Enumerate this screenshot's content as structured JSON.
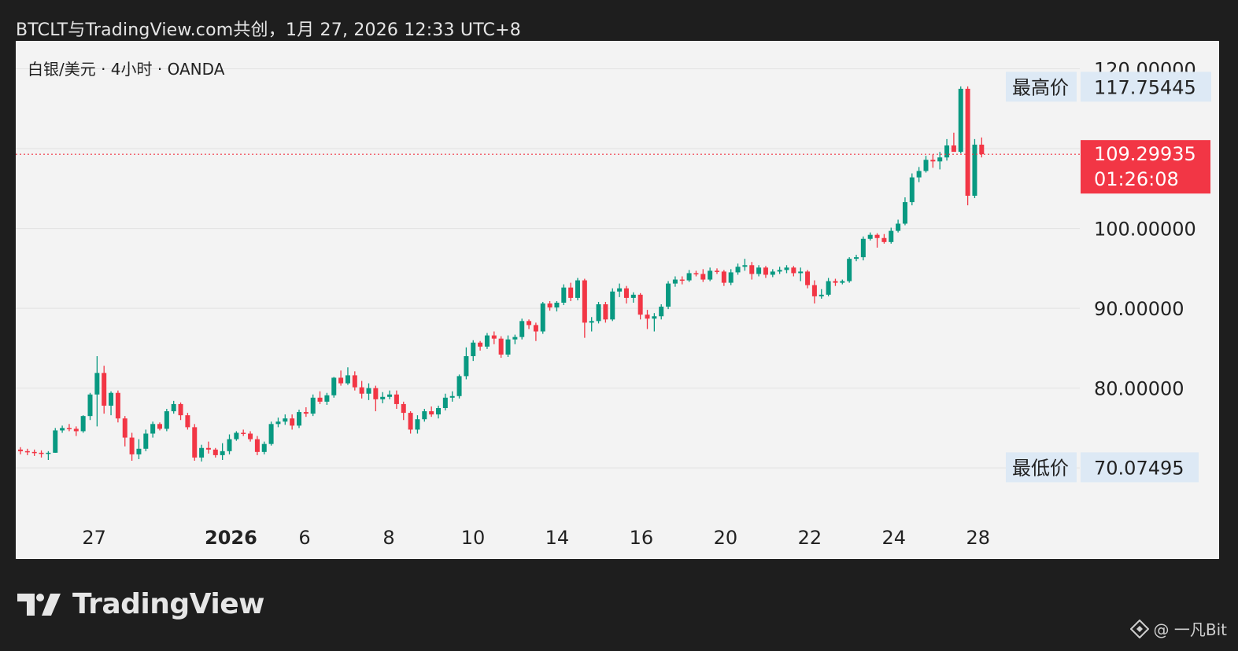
{
  "header": {
    "credit": "BTCLT与TradingView.com共创，1月 27, 2026 12:33 UTC+8"
  },
  "legend": {
    "symbol": "白银/美元 · 4小时 · OANDA"
  },
  "branding": {
    "logo_text": "TradingView",
    "watermark": "@ 一凡Bit"
  },
  "colors": {
    "up": "#089981",
    "down": "#f23645",
    "panel_bg": "#f3f3f3",
    "page_bg": "#1e1e1e",
    "grid": "#e2e2e2",
    "label_bg": "#dde9f5"
  },
  "chart_data": {
    "type": "candlestick",
    "symbol": "白银/美元",
    "interval": "4小时",
    "exchange": "OANDA",
    "ylim": [
      64.4,
      123.5
    ],
    "y_ticks": [
      "120.00000",
      "100.00000",
      "90.00000",
      "80.00000"
    ],
    "y_tick_values": [
      120,
      100,
      90,
      80
    ],
    "x_ticks": [
      {
        "label": "27",
        "index": 7,
        "bold": false
      },
      {
        "label": "2026",
        "index": 20,
        "bold": true
      },
      {
        "label": "6",
        "index": 27,
        "bold": false
      },
      {
        "label": "8",
        "index": 35,
        "bold": false
      },
      {
        "label": "10",
        "index": 43,
        "bold": false
      },
      {
        "label": "14",
        "index": 51,
        "bold": false
      },
      {
        "label": "16",
        "index": 59,
        "bold": false
      },
      {
        "label": "20",
        "index": 67,
        "bold": false
      },
      {
        "label": "22",
        "index": 75,
        "bold": false
      },
      {
        "label": "24",
        "index": 83,
        "bold": false
      },
      {
        "label": "28",
        "index": 91,
        "bold": false
      }
    ],
    "high_label": {
      "text": "最高价",
      "value": 117.75445,
      "value_text": "117.75445"
    },
    "low_label": {
      "text": "最低价",
      "value": 70.07495,
      "value_text": "70.07495"
    },
    "last_price": {
      "value": 109.29935,
      "value_text": "109.29935",
      "countdown": "01:26:08"
    },
    "candles": [
      [
        72.3,
        72.6,
        71.7,
        72.1
      ],
      [
        72.1,
        72.4,
        71.6,
        72.0
      ],
      [
        72.0,
        72.3,
        71.5,
        71.9
      ],
      [
        71.9,
        72.2,
        71.3,
        71.8
      ],
      [
        71.8,
        72.1,
        71.0,
        71.9
      ],
      [
        71.9,
        75.0,
        71.9,
        74.7
      ],
      [
        74.7,
        75.3,
        74.4,
        75.0
      ],
      [
        75.0,
        75.5,
        74.6,
        74.9
      ],
      [
        74.9,
        75.2,
        74.0,
        74.6
      ],
      [
        74.6,
        76.6,
        74.4,
        76.5
      ],
      [
        76.5,
        79.4,
        76.0,
        79.2
      ],
      [
        79.2,
        84.0,
        75.2,
        81.9
      ],
      [
        81.9,
        82.8,
        76.8,
        77.8
      ],
      [
        77.8,
        79.6,
        76.6,
        79.4
      ],
      [
        79.4,
        79.7,
        75.7,
        76.2
      ],
      [
        76.2,
        76.5,
        72.7,
        73.8
      ],
      [
        73.8,
        74.4,
        70.9,
        71.7
      ],
      [
        71.7,
        73.6,
        71.1,
        72.4
      ],
      [
        72.4,
        74.8,
        72.1,
        74.3
      ],
      [
        74.3,
        75.8,
        73.8,
        75.5
      ],
      [
        75.5,
        75.7,
        74.7,
        74.9
      ],
      [
        74.9,
        77.4,
        74.6,
        77.1
      ],
      [
        77.1,
        78.4,
        76.8,
        78.0
      ],
      [
        78.0,
        78.2,
        76.0,
        76.6
      ],
      [
        76.6,
        76.9,
        74.8,
        75.1
      ],
      [
        75.1,
        75.5,
        70.9,
        71.3
      ],
      [
        71.3,
        72.9,
        70.8,
        72.5
      ],
      [
        72.5,
        73.3,
        71.8,
        72.3
      ],
      [
        72.3,
        72.5,
        71.3,
        71.6
      ],
      [
        71.6,
        73.1,
        71.0,
        72.1
      ],
      [
        72.1,
        74.2,
        71.7,
        73.6
      ],
      [
        73.6,
        74.6,
        73.4,
        74.4
      ],
      [
        74.4,
        74.8,
        74.0,
        74.3
      ],
      [
        74.3,
        74.6,
        73.3,
        73.6
      ],
      [
        73.6,
        74.0,
        71.6,
        72.0
      ],
      [
        72.0,
        73.3,
        71.7,
        73.0
      ],
      [
        73.0,
        75.8,
        72.8,
        75.5
      ],
      [
        75.5,
        76.3,
        75.1,
        75.8
      ],
      [
        75.8,
        76.7,
        75.4,
        76.2
      ],
      [
        76.2,
        76.7,
        74.8,
        75.3
      ],
      [
        75.3,
        77.3,
        75.0,
        77.0
      ],
      [
        77.0,
        77.6,
        76.4,
        76.8
      ],
      [
        76.8,
        79.2,
        76.5,
        78.8
      ],
      [
        78.8,
        79.6,
        78.0,
        78.3
      ],
      [
        78.3,
        79.4,
        77.9,
        79.1
      ],
      [
        79.1,
        81.4,
        78.8,
        81.3
      ],
      [
        81.3,
        82.2,
        80.3,
        80.6
      ],
      [
        80.6,
        82.6,
        80.4,
        81.6
      ],
      [
        81.6,
        82.1,
        79.7,
        80.1
      ],
      [
        80.1,
        80.9,
        78.7,
        79.3
      ],
      [
        79.3,
        80.6,
        78.5,
        80.0
      ],
      [
        80.0,
        80.3,
        77.1,
        78.6
      ],
      [
        78.6,
        79.5,
        78.1,
        78.9
      ],
      [
        78.9,
        79.7,
        78.6,
        79.2
      ],
      [
        79.2,
        79.7,
        77.4,
        78.0
      ],
      [
        78.0,
        78.3,
        76.0,
        76.9
      ],
      [
        76.9,
        77.1,
        74.3,
        74.8
      ],
      [
        74.8,
        76.6,
        74.3,
        76.1
      ],
      [
        76.1,
        77.4,
        75.8,
        77.1
      ],
      [
        77.1,
        77.7,
        76.4,
        76.7
      ],
      [
        76.7,
        77.8,
        76.2,
        77.5
      ],
      [
        77.5,
        79.3,
        77.2,
        78.8
      ],
      [
        78.8,
        79.6,
        78.3,
        79.0
      ],
      [
        79.0,
        81.7,
        78.7,
        81.5
      ],
      [
        81.5,
        85.1,
        81.1,
        84.0
      ],
      [
        84.0,
        86.0,
        83.4,
        85.7
      ],
      [
        85.7,
        85.9,
        84.7,
        85.2
      ],
      [
        85.2,
        86.9,
        84.9,
        86.6
      ],
      [
        86.6,
        87.1,
        85.5,
        86.2
      ],
      [
        86.2,
        86.5,
        83.8,
        84.2
      ],
      [
        84.2,
        86.6,
        83.9,
        86.1
      ],
      [
        86.1,
        86.7,
        85.5,
        86.4
      ],
      [
        86.4,
        88.7,
        86.1,
        88.4
      ],
      [
        88.4,
        88.6,
        87.4,
        87.9
      ],
      [
        87.9,
        88.2,
        85.9,
        87.1
      ],
      [
        87.1,
        90.8,
        86.8,
        90.6
      ],
      [
        90.6,
        90.9,
        89.7,
        90.1
      ],
      [
        90.1,
        90.9,
        89.6,
        90.7
      ],
      [
        90.7,
        93.0,
        90.4,
        92.6
      ],
      [
        92.6,
        93.2,
        90.9,
        91.3
      ],
      [
        91.3,
        93.8,
        91.0,
        93.5
      ],
      [
        93.5,
        93.7,
        86.3,
        88.2
      ],
      [
        88.2,
        88.9,
        87.1,
        88.4
      ],
      [
        88.4,
        90.8,
        88.1,
        90.5
      ],
      [
        90.5,
        90.8,
        88.2,
        88.6
      ],
      [
        88.6,
        92.5,
        88.4,
        92.1
      ],
      [
        92.1,
        93.1,
        91.4,
        92.5
      ],
      [
        92.5,
        92.8,
        90.6,
        91.3
      ],
      [
        91.3,
        92.0,
        90.7,
        91.7
      ],
      [
        91.7,
        91.9,
        88.6,
        89.2
      ],
      [
        89.2,
        89.8,
        87.4,
        88.7
      ],
      [
        88.7,
        89.4,
        87.1,
        89.0
      ],
      [
        89.0,
        90.5,
        88.6,
        90.2
      ],
      [
        90.2,
        93.4,
        89.9,
        93.1
      ],
      [
        93.1,
        94.0,
        92.7,
        93.6
      ],
      [
        93.6,
        94.0,
        93.0,
        93.5
      ],
      [
        93.5,
        94.8,
        93.3,
        94.4
      ],
      [
        94.4,
        94.7,
        94.0,
        94.3
      ],
      [
        94.3,
        94.9,
        93.3,
        93.6
      ],
      [
        93.6,
        95.1,
        93.4,
        94.7
      ],
      [
        94.7,
        95.0,
        94.3,
        94.6
      ],
      [
        94.6,
        94.8,
        92.8,
        93.2
      ],
      [
        93.2,
        94.9,
        92.9,
        94.5
      ],
      [
        94.5,
        95.6,
        94.2,
        95.2
      ],
      [
        95.2,
        96.2,
        94.7,
        95.4
      ],
      [
        95.4,
        95.8,
        93.6,
        94.3
      ],
      [
        94.3,
        95.4,
        94.0,
        95.1
      ],
      [
        95.1,
        95.3,
        93.8,
        94.2
      ],
      [
        94.2,
        94.9,
        93.9,
        94.6
      ],
      [
        94.6,
        95.2,
        94.3,
        94.8
      ],
      [
        94.8,
        95.4,
        94.4,
        95.1
      ],
      [
        95.1,
        95.3,
        94.0,
        94.4
      ],
      [
        94.4,
        95.1,
        93.4,
        94.6
      ],
      [
        94.6,
        94.8,
        92.5,
        92.9
      ],
      [
        92.9,
        93.5,
        90.6,
        91.5
      ],
      [
        91.5,
        92.4,
        91.2,
        91.7
      ],
      [
        91.7,
        93.8,
        91.5,
        93.4
      ],
      [
        93.4,
        93.7,
        92.8,
        93.2
      ],
      [
        93.2,
        93.6,
        93.0,
        93.4
      ],
      [
        93.4,
        96.4,
        93.2,
        96.2
      ],
      [
        96.2,
        96.7,
        95.9,
        96.4
      ],
      [
        96.4,
        99.0,
        96.0,
        98.7
      ],
      [
        98.7,
        99.5,
        98.5,
        99.2
      ],
      [
        99.2,
        99.4,
        97.6,
        98.8
      ],
      [
        98.8,
        99.3,
        98.1,
        98.3
      ],
      [
        98.3,
        100.1,
        98.1,
        99.7
      ],
      [
        99.7,
        101.1,
        99.5,
        100.6
      ],
      [
        100.6,
        103.9,
        100.4,
        103.3
      ],
      [
        103.3,
        106.9,
        102.9,
        106.4
      ],
      [
        106.4,
        107.7,
        105.8,
        107.2
      ],
      [
        107.2,
        109.1,
        107.0,
        108.6
      ],
      [
        108.6,
        109.3,
        107.6,
        108.4
      ],
      [
        108.4,
        109.6,
        107.4,
        108.9
      ],
      [
        108.9,
        111.2,
        108.5,
        110.4
      ],
      [
        110.4,
        112.0,
        109.7,
        109.6
      ],
      [
        109.6,
        117.8,
        109.4,
        117.5
      ],
      [
        117.5,
        117.8,
        102.9,
        104.1
      ],
      [
        104.1,
        111.2,
        103.8,
        110.5
      ],
      [
        110.5,
        111.4,
        108.9,
        109.3
      ]
    ]
  }
}
